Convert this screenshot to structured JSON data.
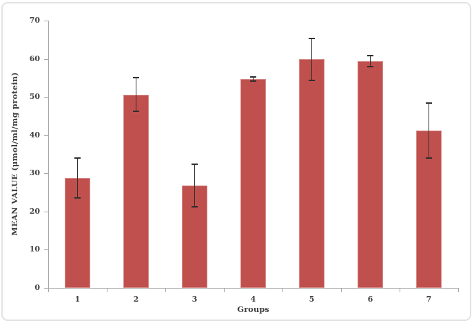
{
  "frame": {
    "background_color": "#ffffff",
    "border_color": "#e2e2e2"
  },
  "chart_data": {
    "type": "bar",
    "title": "",
    "xlabel": "Groups",
    "ylabel": "MEAN VALUE (μmol/ml/mg protein)",
    "categories": [
      "1",
      "2",
      "3",
      "4",
      "5",
      "6",
      "7"
    ],
    "values": [
      28.8,
      50.6,
      26.8,
      54.7,
      59.9,
      59.4,
      41.2
    ],
    "errors": [
      5.3,
      4.4,
      5.6,
      0.6,
      5.5,
      1.5,
      7.2
    ],
    "ylim": [
      0,
      70
    ],
    "yticks": [
      0,
      10,
      20,
      30,
      40,
      50,
      60,
      70
    ],
    "grid": false,
    "legend": "none",
    "bar_color": "#C0504D",
    "error_bar_color": "#2e2e2e",
    "axis_color": "#a6a6a6",
    "text_color": "#404040"
  }
}
